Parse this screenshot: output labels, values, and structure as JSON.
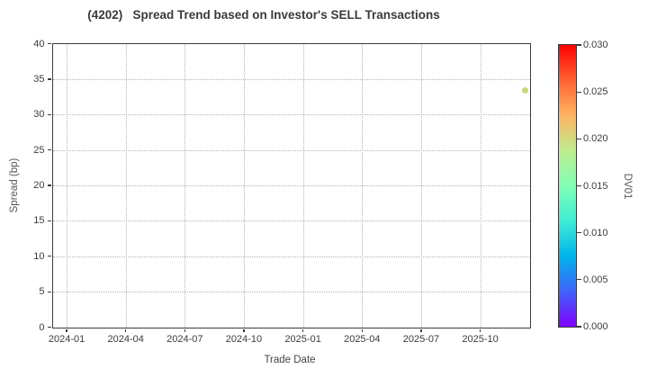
{
  "chart_data": {
    "type": "scatter",
    "title": "(4202)   Spread Trend based on Investor's SELL Transactions",
    "xlabel": "Trade Date",
    "ylabel": "Spread (bp)",
    "ylim": [
      0,
      40
    ],
    "y_ticks": [
      0,
      5,
      10,
      15,
      20,
      25,
      30,
      35,
      40
    ],
    "xlim_months": [
      -0.71,
      23.51
    ],
    "x_ticks": [
      {
        "label": "2024-01",
        "month": 0
      },
      {
        "label": "2024-04",
        "month": 3
      },
      {
        "label": "2024-07",
        "month": 6
      },
      {
        "label": "2024-10",
        "month": 9
      },
      {
        "label": "2025-01",
        "month": 12
      },
      {
        "label": "2025-04",
        "month": 15
      },
      {
        "label": "2025-07",
        "month": 18
      },
      {
        "label": "2025-10",
        "month": 21
      }
    ],
    "grid": "dotted",
    "legend": "none",
    "points": [
      {
        "date": "2025-12",
        "month": 23.3,
        "spread_bp": 33.4,
        "dv01": 0.016,
        "render_color": "#c4da78"
      }
    ],
    "colorbar": {
      "label": "DV01",
      "min": 0.0,
      "max": 0.03,
      "tick_labels": [
        "0.000",
        "0.005",
        "0.010",
        "0.015",
        "0.020",
        "0.025",
        "0.030"
      ],
      "colormap": "rainbow",
      "gradient_stops": [
        {
          "t": 0.0,
          "color": "rgb(128,0,255)"
        },
        {
          "t": 0.125,
          "color": "rgb(64,98,250)"
        },
        {
          "t": 0.25,
          "color": "rgb(0,180,236)"
        },
        {
          "t": 0.375,
          "color": "rgb(64,236,212)"
        },
        {
          "t": 0.5,
          "color": "rgb(128,255,180)"
        },
        {
          "t": 0.625,
          "color": "rgb(191,236,142)"
        },
        {
          "t": 0.75,
          "color": "rgb(255,180,98)"
        },
        {
          "t": 0.875,
          "color": "rgb(255,98,50)"
        },
        {
          "t": 1.0,
          "color": "rgb(255,0,0)"
        }
      ]
    },
    "colors": {
      "background": "#ffffff",
      "plot_border": "#3c3c3c",
      "grid": "#b3b3b3",
      "title_text": "#3a3a3a",
      "tick_text": "#3c3c3c",
      "axis_label_text": "#555555"
    }
  }
}
